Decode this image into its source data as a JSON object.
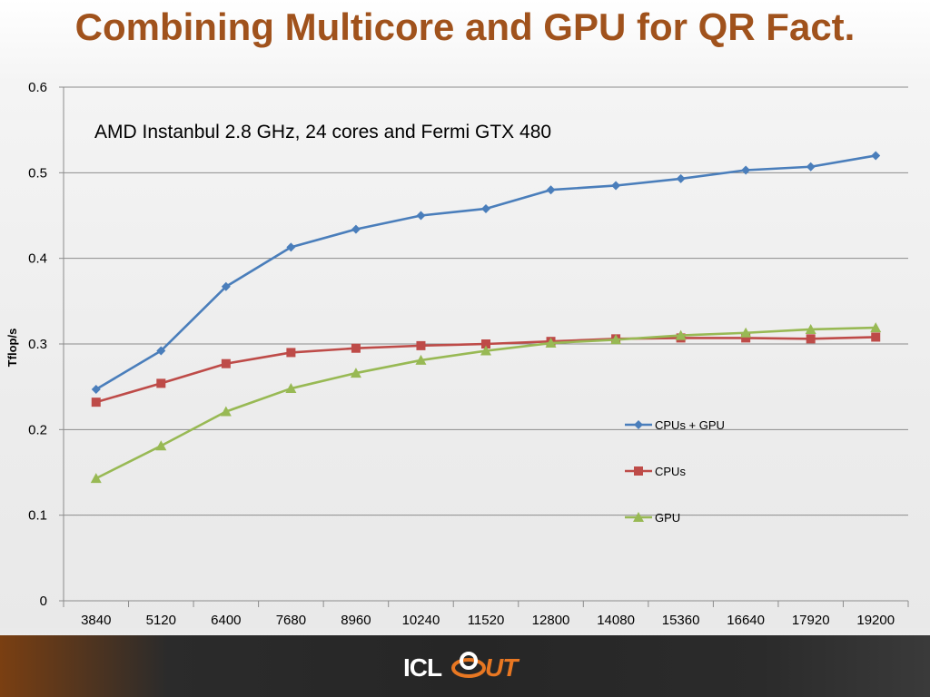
{
  "slide": {
    "title": "Combining Multicore and GPU for QR Fact."
  },
  "footer": {
    "logo_left": "ICL",
    "logo_right": "UT",
    "logo_icon": "orbit-icon"
  },
  "colors": {
    "title": "#a0521c",
    "series_cpus_gpu": "#4a7ebb",
    "series_cpus": "#be4b48",
    "series_gpu": "#98b954"
  },
  "chart_data": {
    "type": "line",
    "annotation": "AMD Instanbul 2.8 GHz, 24 cores and Fermi GTX 480",
    "xlabel": "",
    "ylabel": "Tflop/s",
    "categories": [
      "3840",
      "5120",
      "6400",
      "7680",
      "8960",
      "10240",
      "11520",
      "12800",
      "14080",
      "15360",
      "16640",
      "17920",
      "19200"
    ],
    "ylim": [
      0,
      0.6
    ],
    "yticks": [
      "0",
      "0.1",
      "0.2",
      "0.3",
      "0.4",
      "0.5",
      "0.6"
    ],
    "grid": true,
    "legend_position": "right",
    "series": [
      {
        "name": "CPUs + GPU",
        "marker": "diamond",
        "color": "#4a7ebb",
        "values": [
          0.247,
          0.292,
          0.367,
          0.413,
          0.434,
          0.45,
          0.458,
          0.48,
          0.485,
          0.493,
          0.503,
          0.507,
          0.52
        ]
      },
      {
        "name": "CPUs",
        "marker": "square",
        "color": "#be4b48",
        "values": [
          0.232,
          0.254,
          0.277,
          0.29,
          0.295,
          0.298,
          0.3,
          0.303,
          0.306,
          0.307,
          0.307,
          0.306,
          0.308
        ]
      },
      {
        "name": "GPU",
        "marker": "triangle",
        "color": "#98b954",
        "values": [
          0.143,
          0.181,
          0.221,
          0.248,
          0.266,
          0.281,
          0.292,
          0.301,
          0.305,
          0.31,
          0.313,
          0.317,
          0.319
        ]
      }
    ]
  }
}
